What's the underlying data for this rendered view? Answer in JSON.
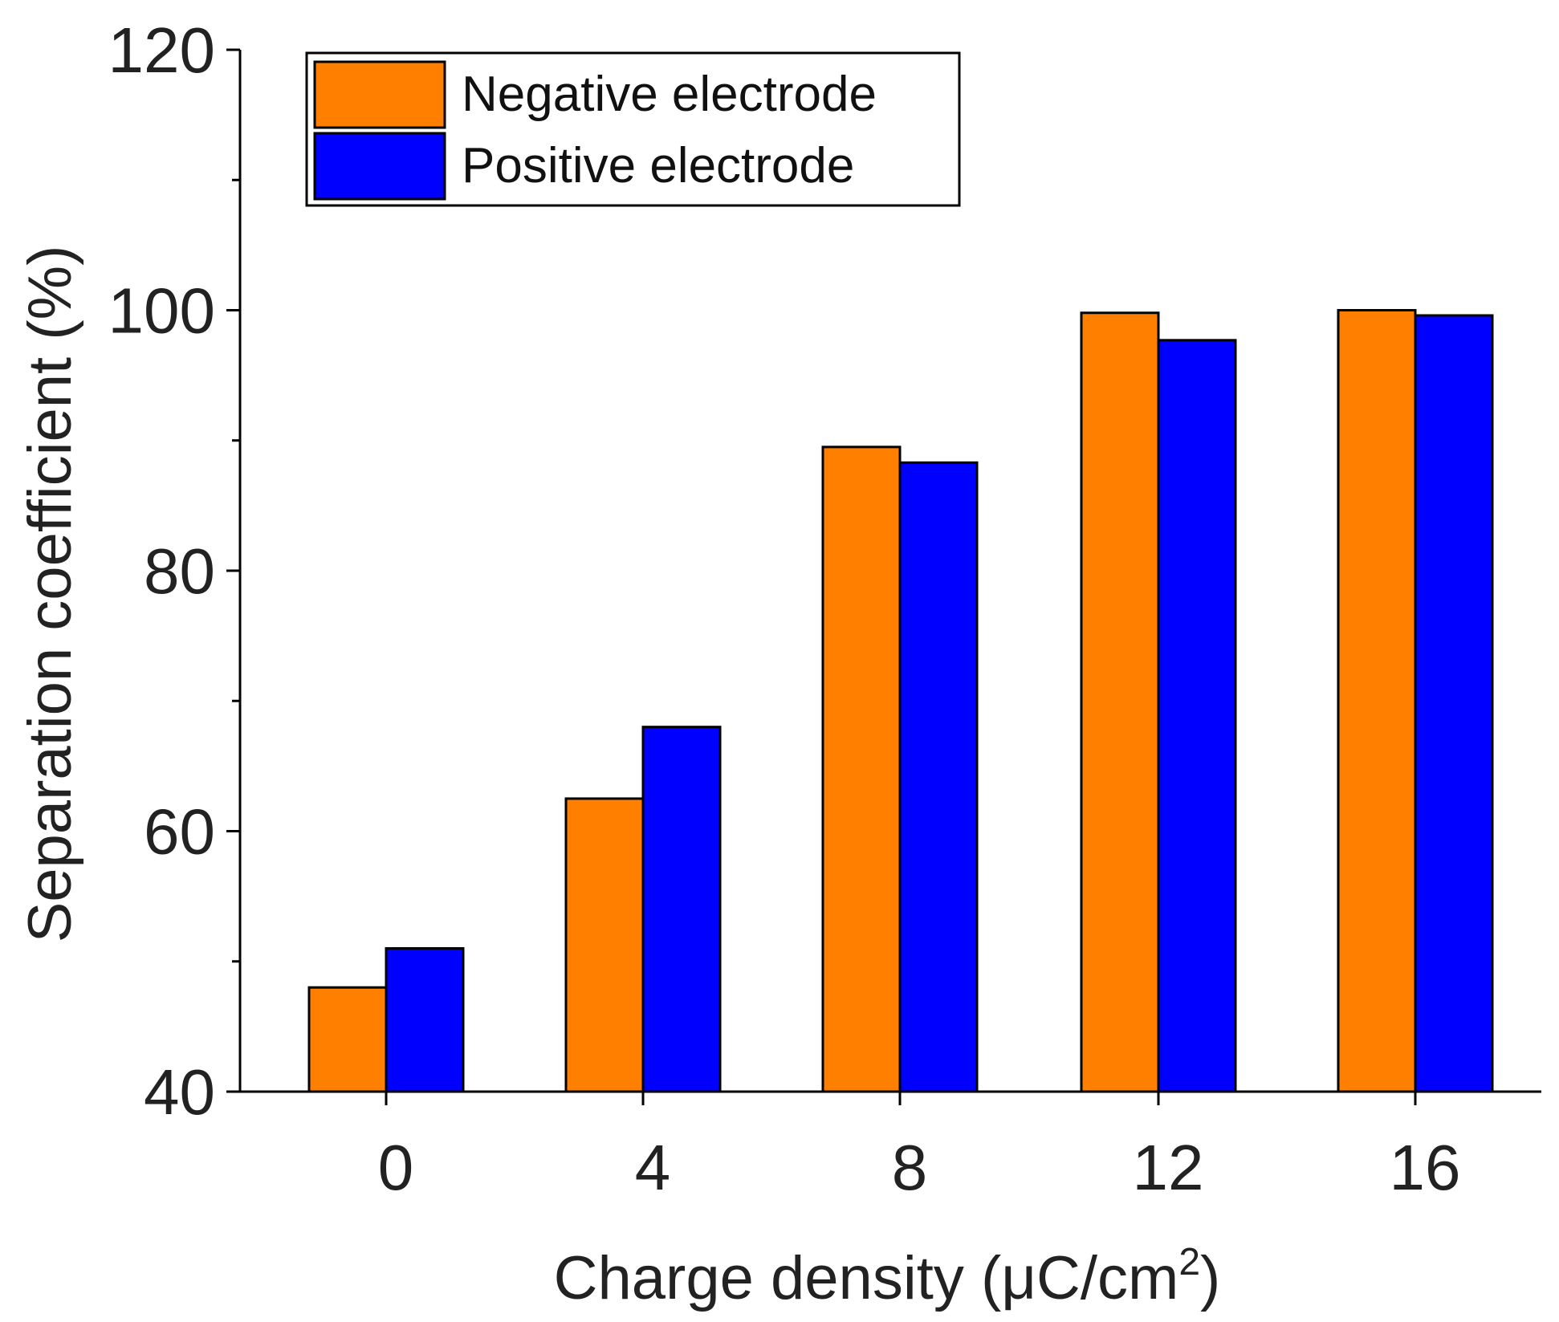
{
  "chart_data": {
    "type": "bar",
    "title": "",
    "xlabel": "Charge density (μC/cm",
    "xlabel_sup": "2",
    "xlabel_end": ")",
    "ylabel": "Separation coefficient (%)",
    "categories": [
      "0",
      "4",
      "8",
      "12",
      "16"
    ],
    "series": [
      {
        "name": "Negative electrode",
        "color": "#ff7f00",
        "values": [
          48,
          62.5,
          89.5,
          99.8,
          100
        ]
      },
      {
        "name": "Positive electrode",
        "color": "#0000ff",
        "values": [
          51,
          68,
          88.3,
          97.7,
          99.6
        ]
      }
    ],
    "ylim": [
      40,
      120
    ],
    "yticks": [
      "40",
      "60",
      "80",
      "100",
      "120"
    ],
    "legend_position": "top-left",
    "grid": false
  }
}
